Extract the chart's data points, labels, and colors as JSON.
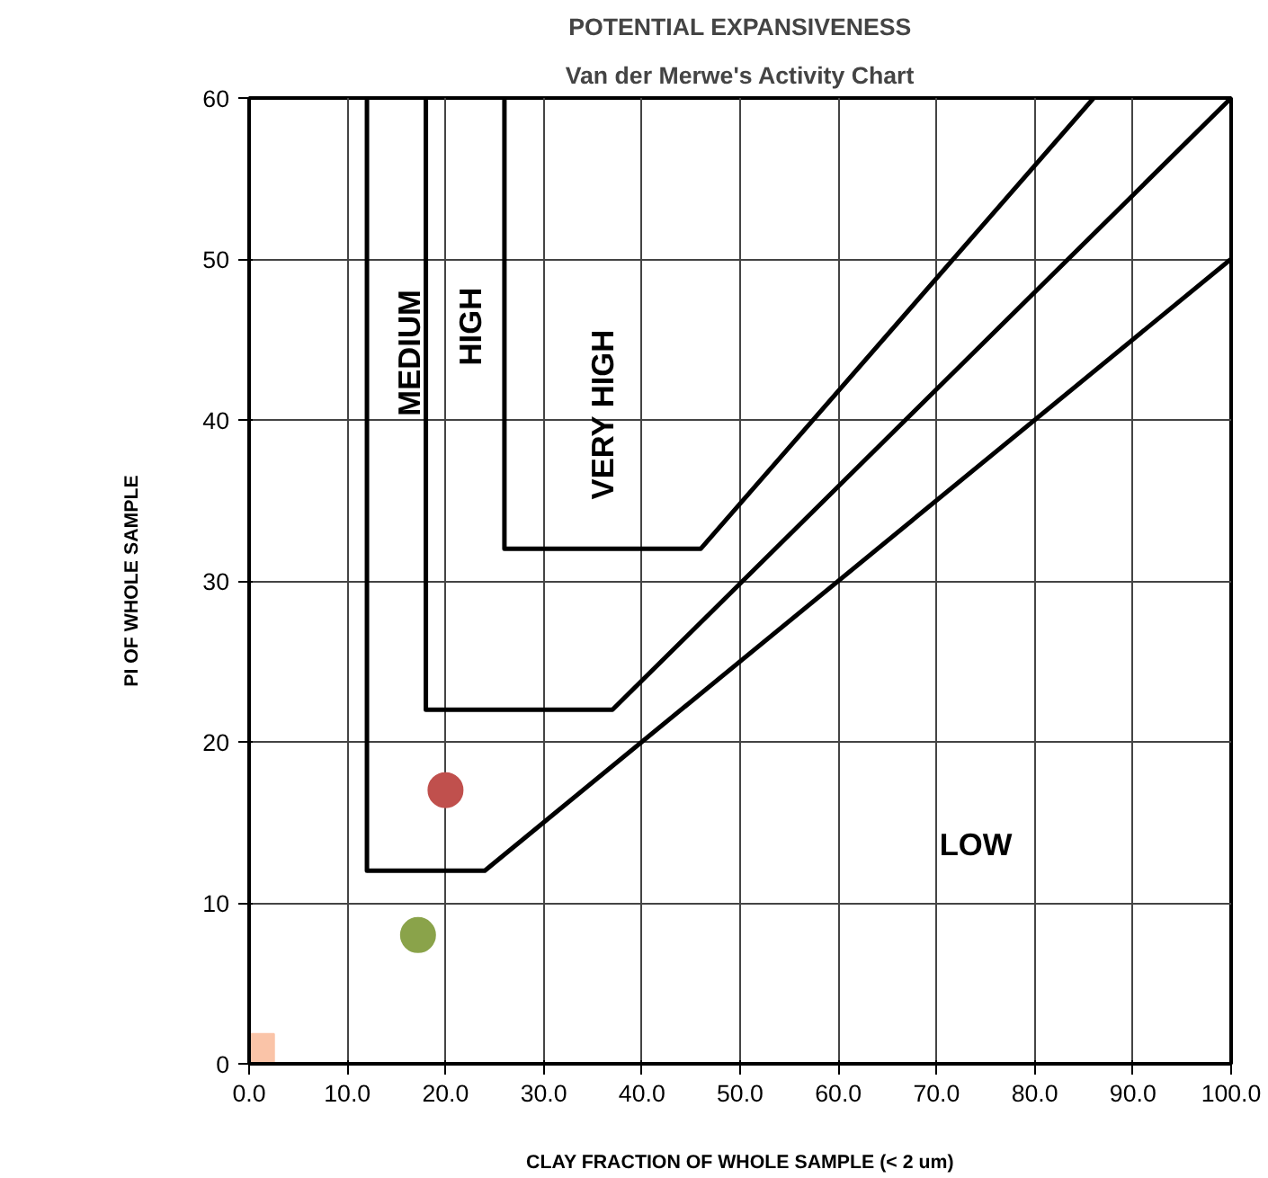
{
  "chart_data": {
    "type": "line",
    "title": "POTENTIAL EXPANSIVENESS",
    "subtitle": "Van der Merwe's Activity Chart",
    "xlabel": "CLAY FRACTION OF WHOLE SAMPLE (< 2 um)",
    "ylabel": "PI OF WHOLE SAMPLE",
    "xlim": [
      0,
      100
    ],
    "ylim": [
      0,
      60
    ],
    "xticks": [
      {
        "value": 0,
        "label": "0.0"
      },
      {
        "value": 10,
        "label": "10.0"
      },
      {
        "value": 20,
        "label": "20.0"
      },
      {
        "value": 30,
        "label": "30.0"
      },
      {
        "value": 40,
        "label": "40.0"
      },
      {
        "value": 50,
        "label": "50.0"
      },
      {
        "value": 60,
        "label": "60.0"
      },
      {
        "value": 70,
        "label": "70.0"
      },
      {
        "value": 80,
        "label": "80.0"
      },
      {
        "value": 90,
        "label": "90.0"
      },
      {
        "value": 100,
        "label": "100.0"
      }
    ],
    "yticks": [
      0,
      10,
      20,
      30,
      40,
      50,
      60
    ],
    "grid": true,
    "line_style": "solid",
    "series": [
      {
        "color": "#000000",
        "x": [
          12,
          12,
          24,
          100
        ],
        "values": [
          60,
          12,
          12,
          50
        ]
      },
      {
        "color": "#000000",
        "x": [
          18,
          18,
          37,
          100
        ],
        "values": [
          60,
          22,
          22,
          60
        ]
      },
      {
        "color": "#000000",
        "x": [
          26,
          26,
          46,
          86
        ],
        "values": [
          60,
          32,
          32,
          60
        ]
      },
      {
        "type": "scatter",
        "marker": "circle",
        "color": "#c0504d",
        "x": [
          20
        ],
        "values": [
          17
        ]
      },
      {
        "type": "scatter",
        "marker": "circle",
        "color": "#8aa34a",
        "x": [
          17.2
        ],
        "values": [
          8
        ]
      },
      {
        "type": "scatter",
        "marker": "square",
        "color": "#fac4a8",
        "x": [
          0.8
        ],
        "values": [
          0.8
        ]
      }
    ],
    "annotations": [
      "MEDIUM",
      "HIGH",
      "VERY HIGH",
      "LOW"
    ]
  }
}
